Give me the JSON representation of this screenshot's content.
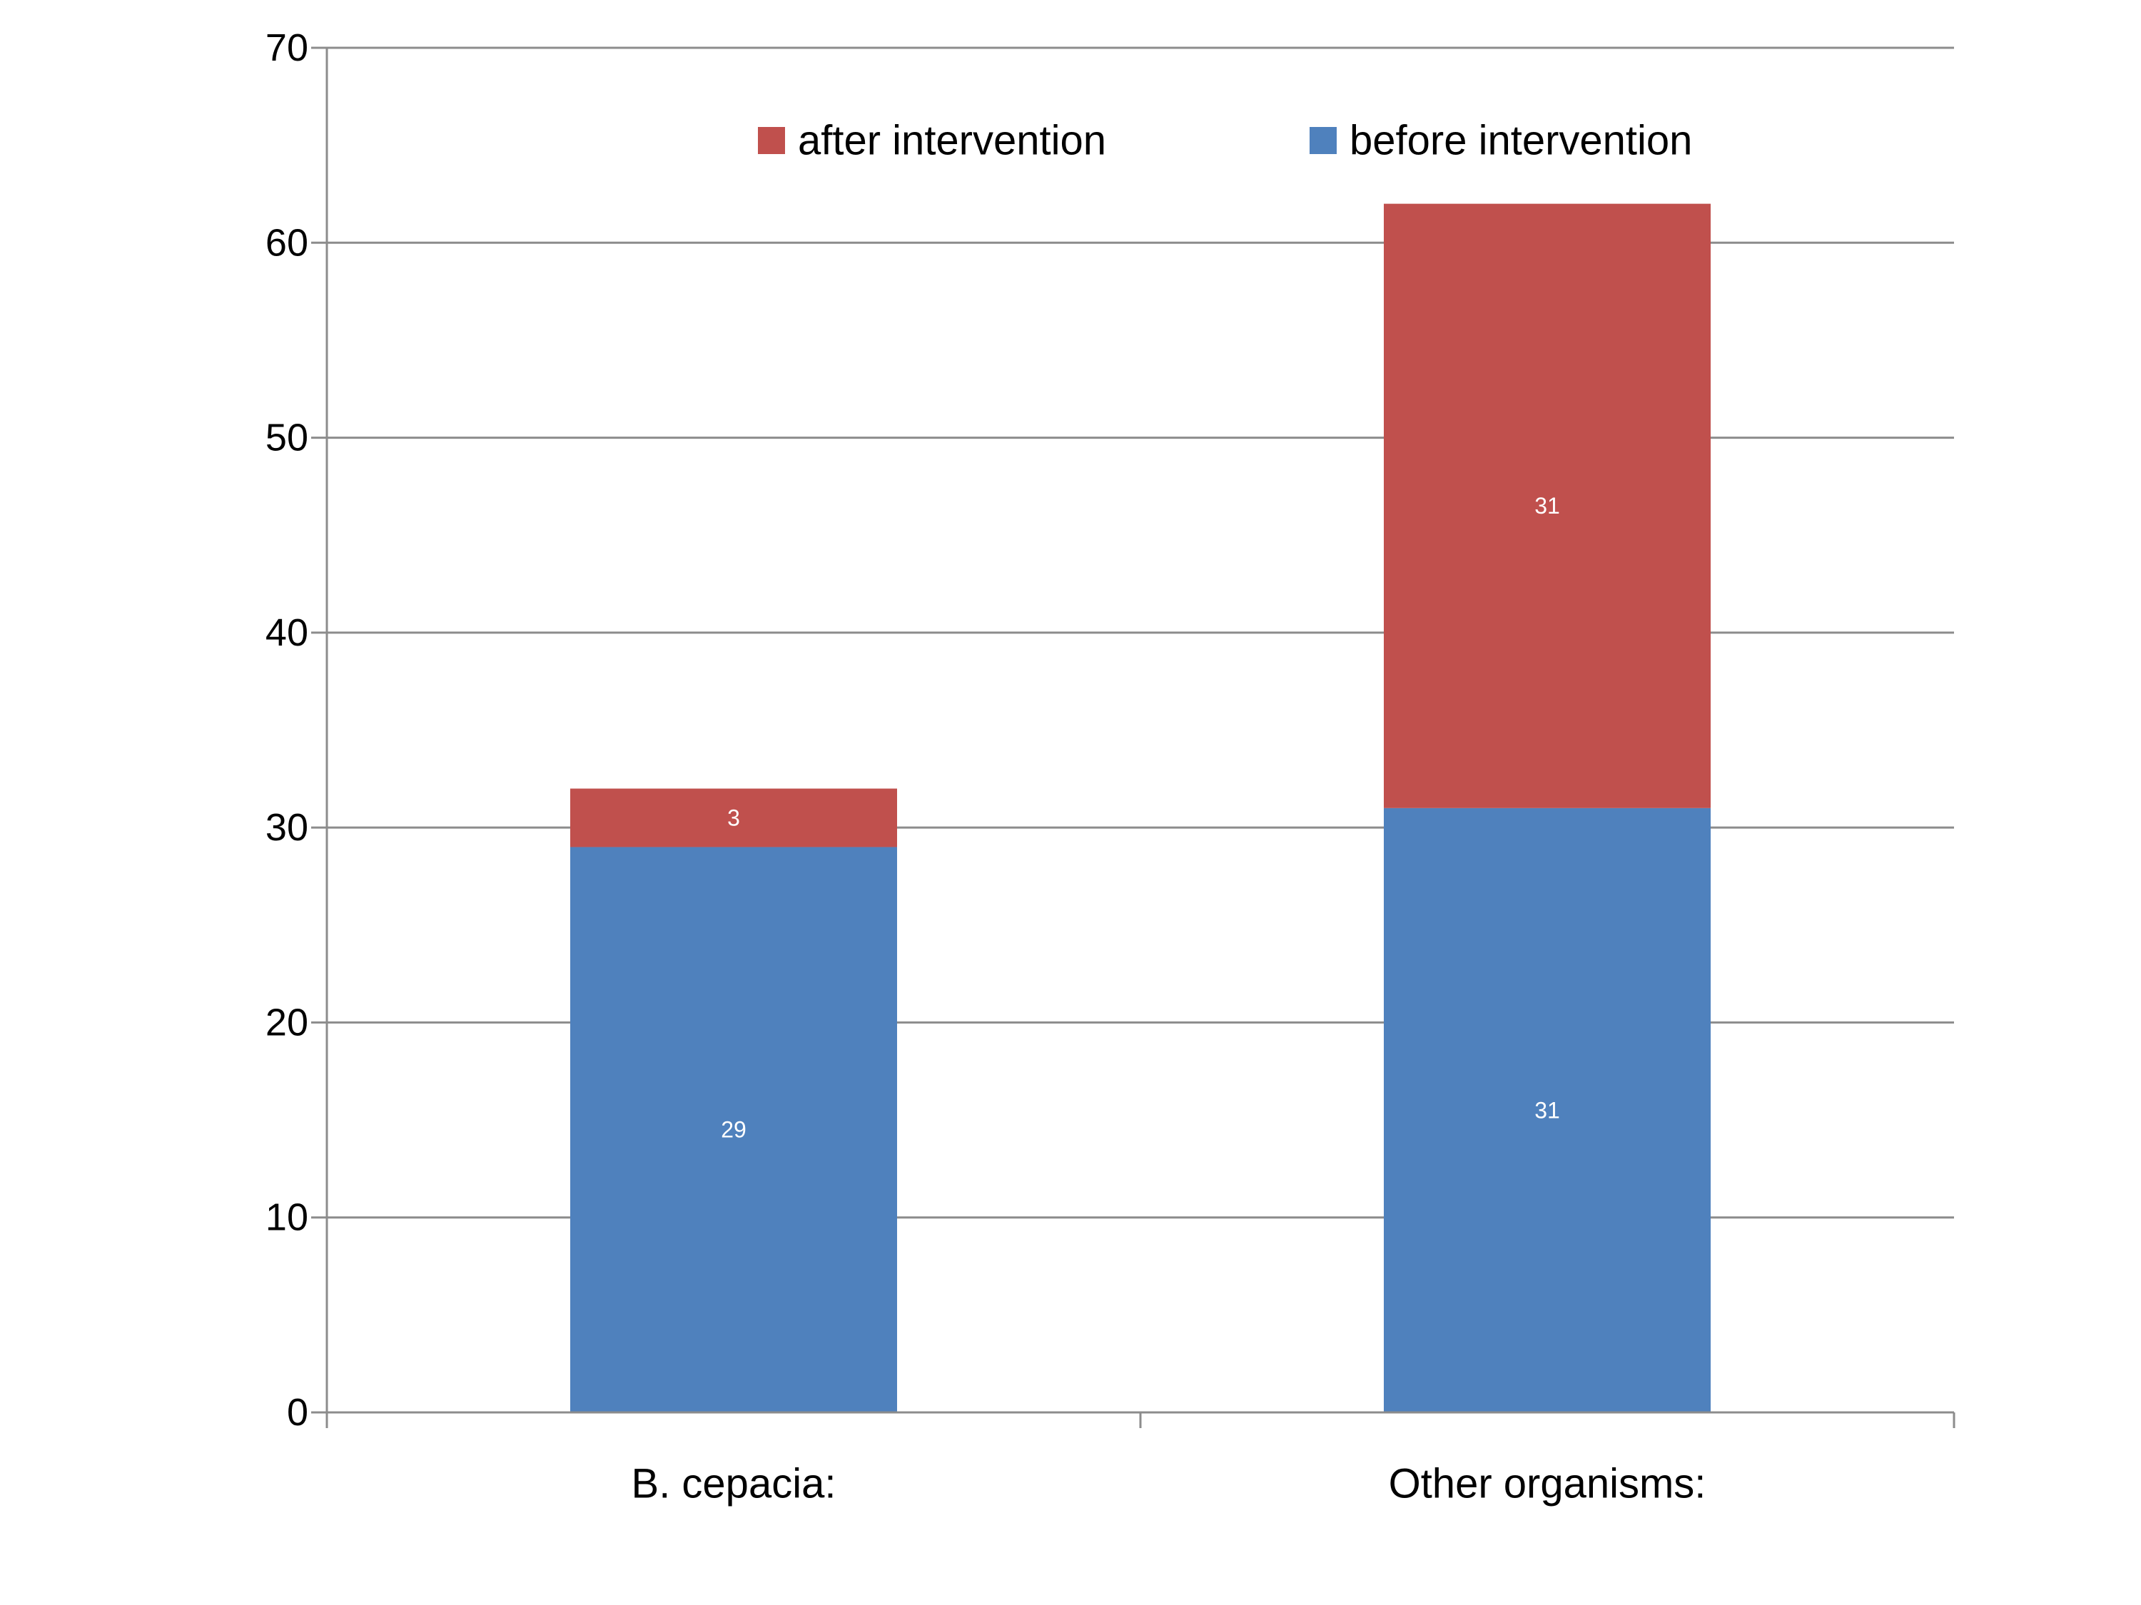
{
  "chart_data": {
    "type": "bar",
    "stacked": true,
    "title": "",
    "xlabel": "",
    "ylabel": "",
    "categories": [
      "B. cepacia:",
      "Other organisms:"
    ],
    "series": [
      {
        "name": "before intervention",
        "values": [
          29,
          31
        ],
        "color": "#4F81BD",
        "data_labels": [
          "29",
          "31"
        ]
      },
      {
        "name": "after intervention",
        "values": [
          3,
          31
        ],
        "color": "#C0504D",
        "data_labels": [
          "3",
          "31"
        ]
      }
    ],
    "ylim": [
      0,
      70
    ],
    "yticks": [
      0,
      10,
      20,
      30,
      40,
      50,
      60,
      70
    ],
    "ytick_labels": [
      "0",
      "10",
      "20",
      "30",
      "40",
      "50",
      "60",
      "70"
    ],
    "grid": true,
    "legend": {
      "placement": "top",
      "entries": [
        {
          "label": "after intervention",
          "color": "#C0504D"
        },
        {
          "label": "before intervention",
          "color": "#4F81BD"
        }
      ]
    },
    "colors": {
      "grid": "#8C8C8C",
      "axis": "#8C8C8C"
    }
  }
}
